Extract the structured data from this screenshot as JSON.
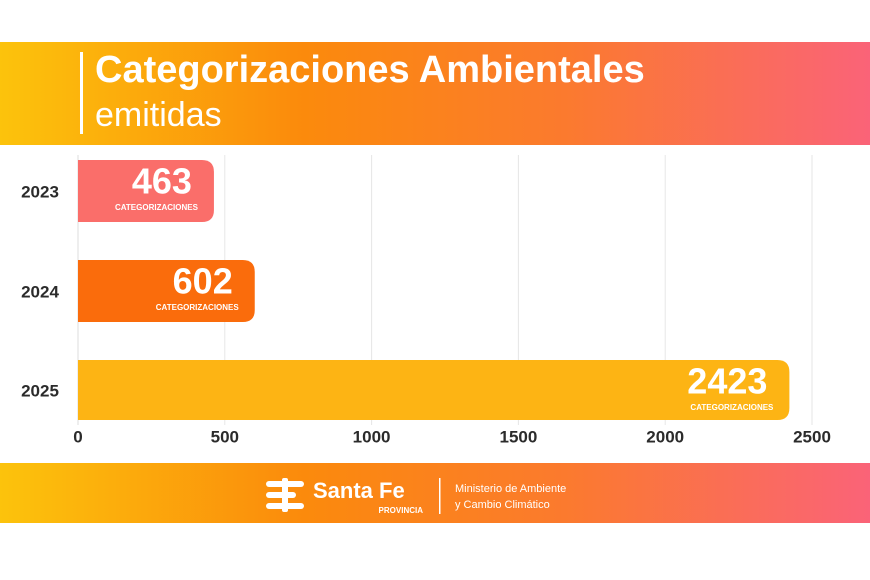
{
  "chart_data": {
    "type": "hbar",
    "title": "Categorizaciones Ambientales",
    "subtitle": "emitidas",
    "categories": [
      "2023",
      "2024",
      "2025"
    ],
    "values": [
      463,
      602,
      2423
    ],
    "unit_label": "CATEGORIZACIONES",
    "colors": [
      "#fa6e6a",
      "#fa6c0c",
      "#fdb414"
    ],
    "xlim": [
      0,
      2500
    ],
    "xticks": [
      0,
      500,
      1000,
      1500,
      2000,
      2500
    ],
    "grid": true
  },
  "footer": {
    "brand": "Santa Fe",
    "brand_sub": "PROVINCIA",
    "ministry_line1": "Ministerio de Ambiente",
    "ministry_line2": "y Cambio Climático"
  }
}
